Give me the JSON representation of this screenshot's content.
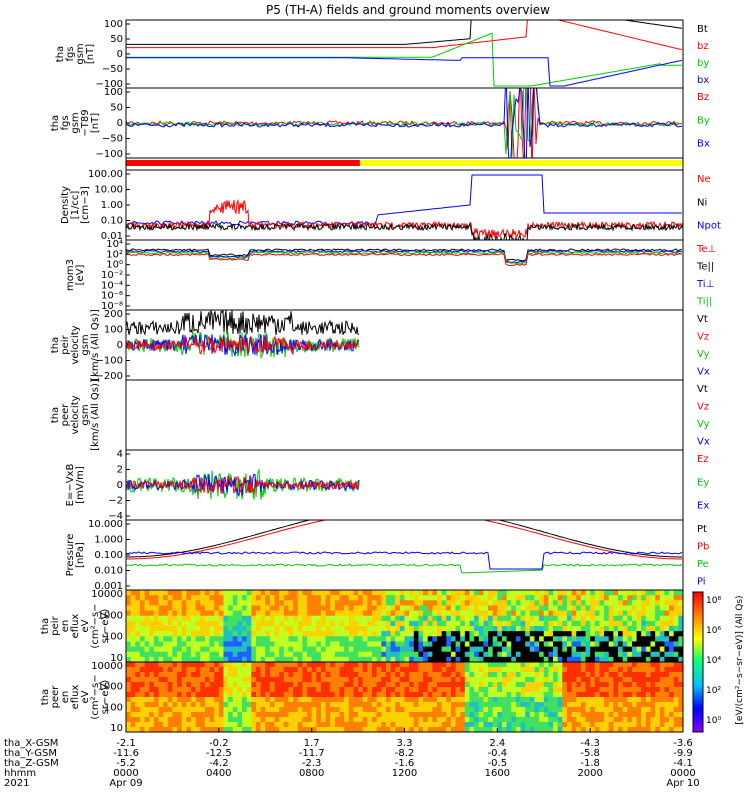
{
  "title": "P5 (TH-A) fields and ground moments overview",
  "colors": {
    "black": "#000000",
    "red": "#ff0000",
    "green": "#00cc00",
    "blue": "#0000ff",
    "yellow": "#ffff00"
  },
  "chart_data": {
    "type": "line",
    "x_tick_labels": {
      "tha_X-GSM": [
        "-2.1",
        "-0.2",
        "1.7",
        "3.3",
        "2.4",
        "-4.3",
        "-3.6"
      ],
      "tha_Y-GSM": [
        "-11.6",
        "-12.5",
        "-11.7",
        "-8.2",
        "-0.4",
        "-5.8",
        "-9.9"
      ],
      "tha_Z-GSM": [
        "-5.2",
        "-4.2",
        "-2.3",
        "-1.6",
        "-0.5",
        "-1.8",
        "-4.1"
      ],
      "hhmm": [
        "0000",
        "0400",
        "0800",
        "1200",
        "1600",
        "2000",
        "0000"
      ],
      "dates": [
        "Apr 09",
        "",
        "",
        "",
        "",
        "",
        "Apr 10"
      ]
    },
    "row_labels": [
      "tha_X-GSM",
      "tha_Y-GSM",
      "tha_Z-GSM",
      "hhmm",
      "2021"
    ],
    "panels": [
      {
        "ylabel": [
          "tha",
          "fgs",
          "gsm",
          "[nT]"
        ],
        "yticks": [
          "100",
          "50",
          "0",
          "−50",
          "−100"
        ],
        "legend": [
          [
            "Bt",
            "black"
          ],
          [
            "bz",
            "red"
          ],
          [
            "by",
            "green"
          ],
          [
            "bx",
            "blue"
          ]
        ]
      },
      {
        "ylabel": [
          "tha",
          "fgs",
          "gsm",
          "−T89",
          "[nT]"
        ],
        "yticks": [
          "100",
          "50",
          "0",
          "−50",
          "−100"
        ],
        "legend": [
          [
            "Bz",
            "red"
          ],
          [
            "By",
            "green"
          ],
          [
            "Bx",
            "blue"
          ]
        ]
      },
      {
        "ylabel": [],
        "yticks": [],
        "legend": []
      },
      {
        "ylabel": [
          "Density",
          "[1/cc]",
          "[cm−3]"
        ],
        "yticks": [
          "100.00",
          "10.00",
          "1.00",
          "0.10",
          "0.01"
        ],
        "legend": [
          [
            "Ne",
            "red"
          ],
          [
            "Ni",
            "black"
          ],
          [
            "Npot",
            "blue"
          ]
        ]
      },
      {
        "ylabel": [
          "mom3",
          "[eV]"
        ],
        "yticks": [
          "10⁴",
          "10²",
          "10⁰",
          "10⁻²",
          "10⁻⁴",
          "10⁻⁶",
          "10⁻⁸"
        ],
        "legend": [
          [
            "Te⊥",
            "red"
          ],
          [
            "Te||",
            "black"
          ],
          [
            "Ti⊥",
            "blue"
          ],
          [
            "Ti||",
            "green"
          ]
        ]
      },
      {
        "ylabel": [
          "tha",
          "peir",
          "velocity",
          "gsm",
          "[km/s (All Qs)]"
        ],
        "yticks": [
          "200",
          "100",
          "0",
          "−100",
          "−200"
        ],
        "legend": [
          [
            "Vt",
            "black"
          ],
          [
            "Vz",
            "red"
          ],
          [
            "Vy",
            "green"
          ],
          [
            "Vx",
            "blue"
          ]
        ]
      },
      {
        "ylabel": [
          "tha",
          "peer",
          "velocity",
          "gsm",
          "[km/s (All Qs)]"
        ],
        "yticks": [],
        "legend": [
          [
            "Vt",
            "black"
          ],
          [
            "Vz",
            "red"
          ],
          [
            "Vy",
            "green"
          ],
          [
            "Vx",
            "blue"
          ]
        ]
      },
      {
        "ylabel": [
          "E=−VxB",
          "[mV/m]"
        ],
        "yticks": [
          "4",
          "2",
          "0",
          "−2",
          "−4"
        ],
        "legend": [
          [
            "Ez",
            "red"
          ],
          [
            "Ey",
            "green"
          ],
          [
            "Ex",
            "blue"
          ]
        ]
      },
      {
        "ylabel": [
          "Pressure",
          "[nPa]"
        ],
        "yticks": [
          "10.000",
          "1.000",
          "0.100",
          "0.010",
          "0.001"
        ],
        "legend": [
          [
            "Pt",
            "black"
          ],
          [
            "Pb",
            "red"
          ],
          [
            "Pe",
            "green"
          ],
          [
            "Pi",
            "blue"
          ]
        ]
      },
      {
        "ylabel": [
          "tha",
          "peir",
          "en",
          "eflux",
          "eV",
          "(cm²−s−",
          "sr−eV)"
        ],
        "yticks": [
          "10000",
          "1000",
          "100",
          "10"
        ],
        "legend": []
      },
      {
        "ylabel": [
          "tha",
          "peer",
          "en",
          "eflux",
          "eV",
          "(cm²−s−",
          "sr−eV)"
        ],
        "yticks": [
          "10000",
          "1000",
          "100",
          "10"
        ],
        "legend": []
      }
    ],
    "colorbar_ticks": [
      "10⁸",
      "10⁶",
      "10⁴",
      "10²",
      "10⁰"
    ],
    "colorbar_label": "[eV/(cm²−s−sr−eV)] (All Qs)"
  }
}
